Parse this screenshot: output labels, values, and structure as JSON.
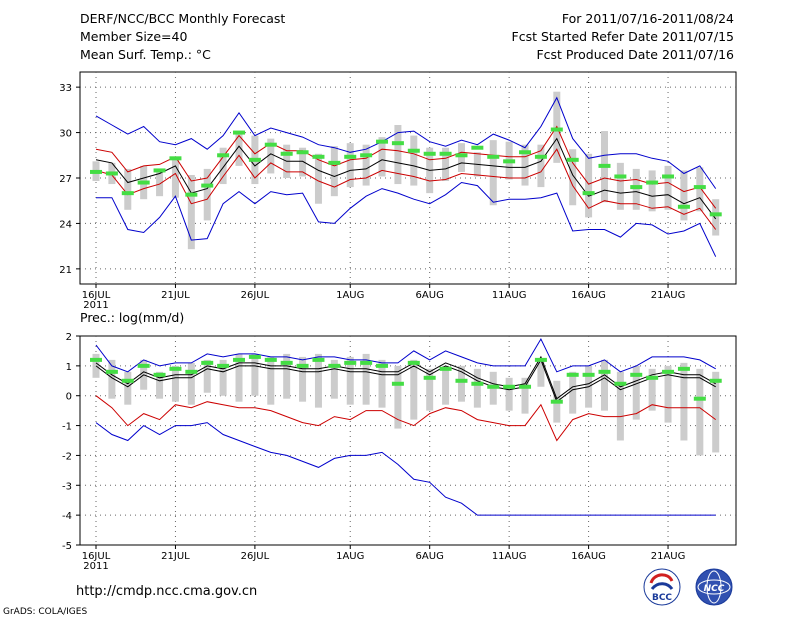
{
  "header": {
    "title_left": "DERF/NCC/BCC Monthly Forecast",
    "member_size": "Member Size=40",
    "variable": "Mean Surf. Temp.: °C",
    "forecast_range": "For 2011/07/16-2011/08/24",
    "started_refer": "Fcst Started Refer Date 2011/07/15",
    "produced": "Fcst Produced Date 2011/07/16"
  },
  "footer": {
    "url": "http://cmdp.ncc.cma.gov.cn",
    "grads": "GrADS: COLA/IGES",
    "logo_left": "BCC",
    "logo_right": "NCC"
  },
  "colors": {
    "max_min": "#0000cc",
    "spread": "#cc0000",
    "mean": "#000000",
    "median": "#44dd44",
    "box": "#cccccc"
  },
  "chart_data": [
    {
      "type": "box-line",
      "title": "Mean Surf. Temp.: °C",
      "x_labels": [
        "16JUL",
        "21JUL",
        "26JUL",
        "1AUG",
        "6AUG",
        "11AUG",
        "16AUG",
        "21AUG"
      ],
      "x_label_days": [
        1,
        6,
        11,
        17,
        22,
        27,
        32,
        37
      ],
      "year_label": "2011",
      "days": 40,
      "ylim": [
        20,
        34
      ],
      "yticks": [
        21,
        24,
        27,
        30,
        33
      ],
      "series": [
        {
          "name": "max",
          "color": "#0000cc",
          "values": [
            31.1,
            30.5,
            29.9,
            30.4,
            29.4,
            29.2,
            29.6,
            28.9,
            29.8,
            31.3,
            29.8,
            30.3,
            30.0,
            29.7,
            29.2,
            29.0,
            28.7,
            28.9,
            29.4,
            30.0,
            30.1,
            29.4,
            29.1,
            29.5,
            29.2,
            29.9,
            29.5,
            29.0,
            30.4,
            32.3,
            29.6,
            28.3,
            28.5,
            28.6,
            28.6,
            28.3,
            28.1,
            27.3,
            27.8,
            26.3
          ]
        },
        {
          "name": "min",
          "color": "#0000cc",
          "values": [
            25.7,
            25.7,
            23.6,
            23.4,
            24.4,
            25.8,
            22.9,
            23.0,
            25.3,
            26.1,
            25.3,
            26.1,
            25.9,
            26.0,
            24.1,
            24.0,
            25.0,
            25.8,
            26.3,
            26.0,
            25.6,
            25.3,
            25.9,
            26.7,
            26.5,
            25.4,
            25.6,
            25.6,
            25.7,
            26.0,
            23.5,
            23.6,
            23.6,
            23.1,
            24.0,
            23.9,
            23.3,
            23.5,
            24.0,
            21.8
          ]
        },
        {
          "name": "upper",
          "color": "#cc0000",
          "values": [
            28.9,
            28.7,
            27.4,
            27.8,
            27.9,
            28.4,
            26.8,
            27.0,
            28.4,
            29.8,
            28.6,
            29.3,
            28.8,
            28.8,
            28.2,
            27.8,
            28.2,
            28.3,
            28.9,
            28.8,
            28.6,
            28.2,
            28.3,
            28.7,
            28.6,
            28.5,
            28.4,
            28.4,
            28.8,
            30.4,
            28.0,
            26.6,
            27.0,
            26.8,
            26.9,
            26.6,
            26.7,
            26.1,
            26.4,
            25.0
          ]
        },
        {
          "name": "lower",
          "color": "#cc0000",
          "values": [
            27.5,
            27.2,
            25.9,
            26.3,
            26.6,
            27.3,
            25.3,
            25.6,
            27.1,
            28.5,
            27.0,
            28.0,
            27.4,
            27.4,
            26.8,
            26.4,
            26.9,
            27.0,
            27.5,
            27.3,
            27.1,
            26.8,
            26.9,
            27.3,
            27.2,
            27.1,
            27.0,
            27.0,
            27.4,
            28.9,
            26.5,
            25.0,
            25.5,
            25.3,
            25.3,
            25.0,
            25.1,
            24.6,
            25.0,
            23.6
          ]
        },
        {
          "name": "mean",
          "color": "#000000",
          "values": [
            28.2,
            28.0,
            26.7,
            27.0,
            27.3,
            27.8,
            26.0,
            26.3,
            27.7,
            29.1,
            27.8,
            28.6,
            28.1,
            28.1,
            27.5,
            27.1,
            27.5,
            27.6,
            28.2,
            28.0,
            27.8,
            27.5,
            27.6,
            28.0,
            27.9,
            27.8,
            27.7,
            27.7,
            28.1,
            29.6,
            27.2,
            25.8,
            26.2,
            26.0,
            26.1,
            25.8,
            25.9,
            25.3,
            25.7,
            24.3
          ]
        }
      ],
      "box_top": [
        28.1,
        28.0,
        27.6,
        27.8,
        27.6,
        28.3,
        27.2,
        27.6,
        29.0,
        30.1,
        29.8,
        29.6,
        29.2,
        29.0,
        28.6,
        29.1,
        29.3,
        29.2,
        29.7,
        30.5,
        29.8,
        29.0,
        29.0,
        29.3,
        28.7,
        29.5,
        29.4,
        29.2,
        29.2,
        32.7,
        28.9,
        28.6,
        30.1,
        28.0,
        27.6,
        27.5,
        27.8,
        27.5,
        27.7,
        25.6
      ],
      "box_bottom": [
        26.8,
        26.6,
        24.9,
        25.6,
        25.8,
        25.7,
        22.3,
        24.2,
        26.6,
        27.8,
        26.6,
        27.3,
        27.0,
        27.1,
        25.3,
        25.8,
        26.4,
        26.5,
        27.1,
        26.6,
        26.5,
        26.0,
        26.8,
        27.4,
        27.1,
        25.2,
        26.9,
        26.5,
        26.4,
        28.0,
        25.2,
        24.4,
        25.4,
        24.9,
        24.9,
        24.8,
        24.9,
        24.2,
        24.8,
        23.2
      ],
      "median": [
        27.4,
        27.3,
        26.0,
        26.7,
        27.5,
        28.3,
        25.9,
        26.5,
        28.5,
        30.0,
        28.2,
        29.2,
        28.6,
        28.7,
        28.4,
        28.0,
        28.4,
        28.5,
        29.4,
        29.3,
        28.8,
        28.6,
        28.6,
        28.5,
        29.0,
        28.4,
        28.1,
        28.7,
        28.4,
        30.2,
        28.2,
        26.0,
        27.8,
        27.1,
        26.4,
        26.7,
        27.1,
        25.1,
        26.4,
        24.6
      ]
    },
    {
      "type": "box-line",
      "title": "Prec.: log(mm/d)",
      "x_labels": [
        "16JUL",
        "21JUL",
        "26JUL",
        "1AUG",
        "6AUG",
        "11AUG",
        "16AUG",
        "21AUG"
      ],
      "x_label_days": [
        1,
        6,
        11,
        17,
        22,
        27,
        32,
        37
      ],
      "year_label": "2011",
      "days": 40,
      "ylim": [
        -5,
        2
      ],
      "yticks": [
        -5,
        -4,
        -3,
        -2,
        -1,
        0,
        1,
        2
      ],
      "series": [
        {
          "name": "max",
          "color": "#0000cc",
          "values": [
            1.7,
            1.0,
            0.8,
            1.2,
            1.0,
            1.1,
            1.1,
            1.4,
            1.3,
            1.4,
            1.4,
            1.3,
            1.3,
            1.2,
            1.3,
            1.3,
            1.2,
            1.2,
            1.1,
            1.1,
            1.5,
            1.2,
            1.5,
            1.3,
            1.1,
            1.0,
            1.0,
            1.0,
            1.9,
            0.8,
            1.0,
            1.0,
            1.2,
            0.8,
            1.0,
            1.3,
            1.3,
            1.3,
            1.2,
            0.9
          ]
        },
        {
          "name": "min",
          "color": "#0000cc",
          "values": [
            -0.9,
            -1.3,
            -1.5,
            -1.0,
            -1.3,
            -1.0,
            -1.0,
            -0.9,
            -1.3,
            -1.5,
            -1.7,
            -1.9,
            -2.0,
            -2.2,
            -2.4,
            -2.1,
            -2.0,
            -2.0,
            -1.9,
            -2.3,
            -2.8,
            -2.9,
            -3.4,
            -3.6,
            -4.0,
            -4.0,
            -4.0,
            -4.0,
            -4.0,
            -4.0,
            -4.0,
            -4.0,
            -4.0,
            -4.0,
            -4.0,
            -4.0,
            -4.0,
            -4.0,
            -4.0,
            -4.0
          ]
        },
        {
          "name": "upper",
          "color": "#000000",
          "values": [
            1.1,
            0.7,
            0.4,
            0.8,
            0.6,
            0.7,
            0.7,
            1.0,
            0.9,
            1.1,
            1.1,
            1.0,
            1.0,
            0.9,
            0.9,
            1.0,
            0.9,
            0.9,
            0.8,
            0.8,
            1.1,
            0.8,
            1.1,
            0.9,
            0.6,
            0.4,
            0.3,
            0.4,
            1.3,
            -0.1,
            0.3,
            0.4,
            0.7,
            0.3,
            0.5,
            0.7,
            0.8,
            0.7,
            0.7,
            0.4
          ]
        },
        {
          "name": "lower",
          "color": "#cc0000",
          "values": [
            0.0,
            -0.4,
            -1.0,
            -0.6,
            -0.8,
            -0.3,
            -0.4,
            -0.2,
            -0.3,
            -0.4,
            -0.4,
            -0.5,
            -0.7,
            -0.9,
            -1.0,
            -0.7,
            -0.8,
            -0.5,
            -0.5,
            -0.8,
            -1.0,
            -0.6,
            -0.4,
            -0.5,
            -0.8,
            -0.9,
            -1.0,
            -1.0,
            -0.3,
            -1.5,
            -0.8,
            -0.6,
            -0.7,
            -0.7,
            -0.6,
            -0.3,
            -0.4,
            -0.4,
            -0.4,
            -0.8
          ]
        },
        {
          "name": "mean",
          "color": "#000000",
          "values": [
            1.0,
            0.6,
            0.3,
            0.7,
            0.5,
            0.6,
            0.6,
            0.9,
            0.8,
            1.0,
            1.0,
            0.9,
            0.9,
            0.8,
            0.8,
            0.9,
            0.8,
            0.8,
            0.7,
            0.7,
            1.0,
            0.7,
            1.0,
            0.8,
            0.5,
            0.3,
            0.2,
            0.3,
            1.2,
            -0.2,
            0.2,
            0.3,
            0.6,
            0.2,
            0.4,
            0.6,
            0.7,
            0.6,
            0.6,
            0.3
          ]
        }
      ],
      "box_top": [
        1.4,
        1.2,
        0.8,
        1.2,
        0.8,
        1.0,
        1.1,
        1.2,
        1.2,
        1.4,
        1.4,
        1.3,
        1.4,
        1.3,
        1.4,
        1.2,
        1.3,
        1.4,
        1.2,
        1.0,
        1.2,
        0.9,
        1.0,
        1.0,
        0.9,
        0.8,
        0.6,
        0.6,
        1.2,
        0.5,
        0.8,
        1.0,
        1.2,
        0.8,
        1.0,
        0.9,
        1.0,
        1.1,
        0.9,
        0.8
      ],
      "box_bottom": [
        0.6,
        -0.1,
        -0.3,
        0.2,
        -0.1,
        -0.2,
        -0.3,
        0.1,
        0.0,
        -0.2,
        0.0,
        -0.3,
        -0.1,
        -0.2,
        -0.4,
        -0.1,
        -0.3,
        -0.3,
        -0.4,
        -1.1,
        -0.8,
        -0.5,
        -0.3,
        -0.2,
        -0.4,
        -0.3,
        -0.5,
        -0.6,
        0.3,
        -0.9,
        -0.6,
        -0.4,
        -0.5,
        -1.5,
        -0.8,
        -0.5,
        -0.9,
        -1.5,
        -2.0,
        -1.9
      ],
      "median": [
        1.2,
        0.8,
        0.5,
        1.0,
        0.7,
        0.9,
        0.8,
        1.1,
        1.0,
        1.2,
        1.3,
        1.2,
        1.1,
        1.0,
        1.2,
        1.0,
        1.1,
        1.1,
        1.0,
        0.4,
        1.1,
        0.6,
        0.9,
        0.5,
        0.4,
        0.3,
        0.3,
        0.3,
        1.2,
        -0.2,
        0.7,
        0.7,
        0.8,
        0.4,
        0.7,
        0.6,
        0.8,
        0.9,
        -0.1,
        0.5
      ]
    }
  ]
}
